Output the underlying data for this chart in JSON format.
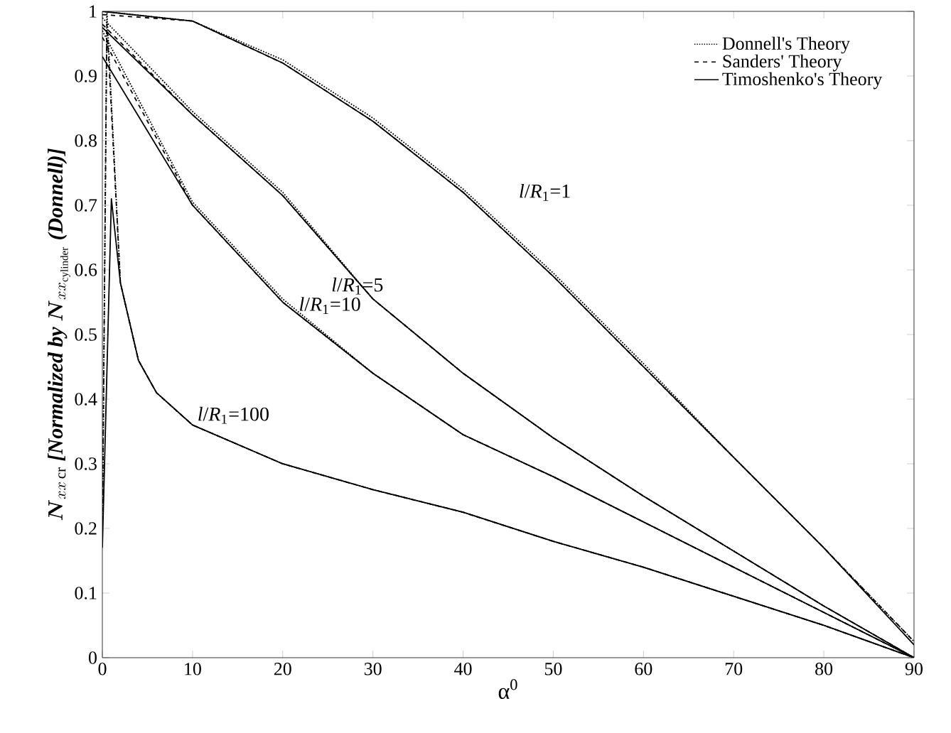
{
  "chart_data": {
    "type": "line",
    "xlabel": "α$^{0}$",
    "ylabel": "\\boldsymbol{N}_{xx\\,\\mathrm{cr}}\\ \\textbf{\\textit{[Normalized by }}\\boldsymbol{N}_{xx_{\\mathrm{cylinder}}}\\ \\textbf{\\textit{(Donnell)]}}",
    "xlim": [
      0,
      90
    ],
    "ylim": [
      0,
      1
    ],
    "xticks": [
      0,
      10,
      20,
      30,
      40,
      50,
      60,
      70,
      80,
      90
    ],
    "yticks": [
      0,
      0.1,
      0.2,
      0.3,
      0.4,
      0.5,
      0.6,
      0.7,
      0.8,
      0.9,
      1
    ],
    "grid": false,
    "legend": "top right",
    "marker": "none",
    "series": [
      {
        "name": "Donnell's Theory",
        "color": "#000000",
        "line_style": "dotted",
        "x": [
          0,
          10,
          20,
          30,
          40,
          50,
          60,
          70,
          80,
          90
        ],
        "values": [
          1.0,
          0.985,
          0.925,
          0.835,
          0.725,
          0.595,
          0.455,
          0.31,
          0.17,
          0.025
        ]
      },
      {
        "name": "Sanders' Theory",
        "color": "#000000",
        "line_style": "dashed",
        "x": [
          0,
          10,
          20,
          30,
          40,
          50,
          60,
          70,
          80,
          90
        ],
        "values": [
          0.995,
          0.985,
          0.92,
          0.83,
          0.72,
          0.59,
          0.45,
          0.31,
          0.17,
          0.025
        ]
      },
      {
        "name": "Timoshenko's Theory",
        "color": "#000000",
        "line_style": "solid",
        "x": [
          0,
          10,
          20,
          30,
          40,
          50,
          60,
          70,
          80,
          90
        ],
        "values": [
          1.0,
          0.985,
          0.92,
          0.83,
          0.72,
          0.59,
          0.45,
          0.31,
          0.17,
          0.02
        ]
      },
      {
        "color": "#000000",
        "line_style": "dotted",
        "x": [
          0,
          10,
          20,
          30,
          40,
          50,
          60,
          70,
          80,
          90
        ],
        "values": [
          0.99,
          0.845,
          0.72,
          0.555,
          0.44,
          0.34,
          0.25,
          0.165,
          0.08,
          0
        ]
      },
      {
        "color": "#000000",
        "line_style": "dashed",
        "x": [
          0,
          10,
          20,
          30,
          40,
          50,
          60,
          70,
          80,
          90
        ],
        "values": [
          0.98,
          0.84,
          0.715,
          0.555,
          0.44,
          0.34,
          0.25,
          0.165,
          0.08,
          0
        ]
      },
      {
        "color": "#000000",
        "line_style": "solid",
        "x": [
          0,
          10,
          20,
          30,
          40,
          50,
          60,
          70,
          80,
          90
        ],
        "values": [
          0.975,
          0.84,
          0.715,
          0.555,
          0.44,
          0.34,
          0.25,
          0.165,
          0.08,
          0
        ]
      },
      {
        "color": "#000000",
        "line_style": "dotted",
        "x": [
          0,
          10,
          20,
          30,
          40,
          50,
          60,
          70,
          80,
          90
        ],
        "values": [
          0.97,
          0.705,
          0.555,
          0.44,
          0.345,
          0.28,
          0.21,
          0.14,
          0.07,
          0
        ]
      },
      {
        "color": "#000000",
        "line_style": "dashed",
        "x": [
          0,
          10,
          20,
          30,
          40,
          50,
          60,
          70,
          80,
          90
        ],
        "values": [
          0.96,
          0.7,
          0.55,
          0.44,
          0.345,
          0.28,
          0.21,
          0.14,
          0.07,
          0
        ]
      },
      {
        "color": "#000000",
        "line_style": "solid",
        "x": [
          0,
          10,
          20,
          30,
          40,
          50,
          60,
          70,
          80,
          90
        ],
        "values": [
          0.93,
          0.7,
          0.55,
          0.44,
          0.345,
          0.28,
          0.21,
          0.14,
          0.07,
          0
        ]
      },
      {
        "color": "#000000",
        "line_style": "dotted",
        "x": [
          0,
          0.5,
          2,
          4,
          6,
          10,
          20,
          30,
          40,
          50,
          60,
          70,
          80,
          90
        ],
        "values": [
          0.18,
          1.0,
          0.58,
          0.46,
          0.41,
          0.36,
          0.3,
          0.26,
          0.225,
          0.18,
          0.14,
          0.095,
          0.05,
          0
        ]
      },
      {
        "color": "#000000",
        "line_style": "dashed",
        "x": [
          0,
          0.5,
          2,
          4,
          6,
          10,
          20,
          30,
          40,
          50,
          60,
          70,
          80,
          90
        ],
        "values": [
          0.2,
          0.98,
          0.58,
          0.46,
          0.41,
          0.36,
          0.3,
          0.26,
          0.225,
          0.18,
          0.14,
          0.095,
          0.05,
          0
        ]
      },
      {
        "color": "#000000",
        "line_style": "solid",
        "x": [
          0,
          1,
          2,
          4,
          6,
          10,
          20,
          30,
          40,
          50,
          60,
          70,
          80,
          90
        ],
        "values": [
          0.17,
          0.71,
          0.58,
          0.46,
          0.41,
          0.36,
          0.3,
          0.26,
          0.225,
          0.18,
          0.14,
          0.095,
          0.05,
          0
        ]
      }
    ],
    "annotations": [
      "*l*/*R*$_{1}$=1",
      "*l*/*R*$_{1}$=5",
      "*l*/*R*$_{1}$=10",
      "*l*/*R*$_{1}$=100"
    ]
  }
}
